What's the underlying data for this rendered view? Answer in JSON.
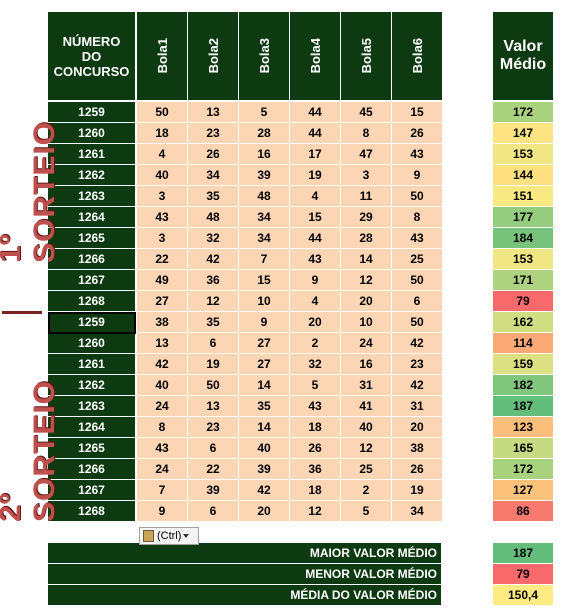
{
  "headers": {
    "concurso": "NÚMERO DO CONCURSO",
    "bolas": [
      "Bola1",
      "Bola2",
      "Bola3",
      "Bola4",
      "Bola5",
      "Bola6"
    ],
    "valor": "Valor Médio"
  },
  "groups": [
    {
      "label": "1º SORTEIO"
    },
    {
      "label": "2º SORTEIO"
    }
  ],
  "rows": [
    {
      "concurso": 1259,
      "bolas": [
        50,
        13,
        5,
        44,
        45,
        15
      ],
      "valor": 172,
      "color": "#a9d27f"
    },
    {
      "concurso": 1260,
      "bolas": [
        18,
        23,
        28,
        44,
        8,
        26
      ],
      "valor": 147,
      "color": "#fee382"
    },
    {
      "concurso": 1261,
      "bolas": [
        4,
        26,
        16,
        17,
        47,
        43
      ],
      "valor": 153,
      "color": "#f0e683"
    },
    {
      "concurso": 1262,
      "bolas": [
        40,
        34,
        39,
        19,
        3,
        9
      ],
      "valor": 144,
      "color": "#fee081"
    },
    {
      "concurso": 1263,
      "bolas": [
        3,
        35,
        48,
        4,
        11,
        50
      ],
      "valor": 151,
      "color": "#f8e983"
    },
    {
      "concurso": 1264,
      "bolas": [
        43,
        48,
        34,
        15,
        29,
        8
      ],
      "valor": 177,
      "color": "#94cc7e"
    },
    {
      "concurso": 1265,
      "bolas": [
        3,
        32,
        34,
        44,
        28,
        43
      ],
      "valor": 184,
      "color": "#77c37c"
    },
    {
      "concurso": 1266,
      "bolas": [
        22,
        42,
        7,
        43,
        14,
        25
      ],
      "valor": 153,
      "color": "#f0e683"
    },
    {
      "concurso": 1267,
      "bolas": [
        49,
        36,
        15,
        9,
        12,
        50
      ],
      "valor": 171,
      "color": "#add380"
    },
    {
      "concurso": 1268,
      "bolas": [
        27,
        12,
        10,
        4,
        20,
        6
      ],
      "valor": 79,
      "color": "#f8696b"
    },
    {
      "concurso": 1259,
      "bolas": [
        38,
        35,
        9,
        20,
        10,
        50
      ],
      "valor": 162,
      "color": "#d0dd81"
    },
    {
      "concurso": 1260,
      "bolas": [
        13,
        6,
        27,
        2,
        24,
        42
      ],
      "valor": 114,
      "color": "#fbaa77"
    },
    {
      "concurso": 1261,
      "bolas": [
        42,
        19,
        27,
        32,
        16,
        23
      ],
      "valor": 159,
      "color": "#dde082"
    },
    {
      "concurso": 1262,
      "bolas": [
        40,
        50,
        14,
        5,
        31,
        42
      ],
      "valor": 182,
      "color": "#80c67c"
    },
    {
      "concurso": 1263,
      "bolas": [
        24,
        13,
        35,
        43,
        41,
        31
      ],
      "valor": 187,
      "color": "#63be7b"
    },
    {
      "concurso": 1264,
      "bolas": [
        8,
        23,
        14,
        18,
        40,
        20
      ],
      "valor": 123,
      "color": "#fcbf7b"
    },
    {
      "concurso": 1265,
      "bolas": [
        43,
        6,
        40,
        26,
        12,
        38
      ],
      "valor": 165,
      "color": "#c5da81"
    },
    {
      "concurso": 1266,
      "bolas": [
        24,
        22,
        39,
        36,
        25,
        26
      ],
      "valor": 172,
      "color": "#a9d27f"
    },
    {
      "concurso": 1267,
      "bolas": [
        7,
        39,
        42,
        18,
        2,
        19
      ],
      "valor": 127,
      "color": "#fcc27b"
    },
    {
      "concurso": 1268,
      "bolas": [
        9,
        6,
        20,
        12,
        5,
        34
      ],
      "valor": 86,
      "color": "#f8796e"
    }
  ],
  "summary": [
    {
      "label": "MAIOR VALOR MÉDIO",
      "value": 187,
      "color": "#63be7b"
    },
    {
      "label": "MENOR VALOR MÉDIO",
      "value": 79,
      "color": "#f8696b"
    },
    {
      "label": "MÉDIA DO VALOR MÉDIO",
      "value": "150,4",
      "color": "#ffeb84"
    }
  ],
  "paste_button": "(Ctrl)"
}
